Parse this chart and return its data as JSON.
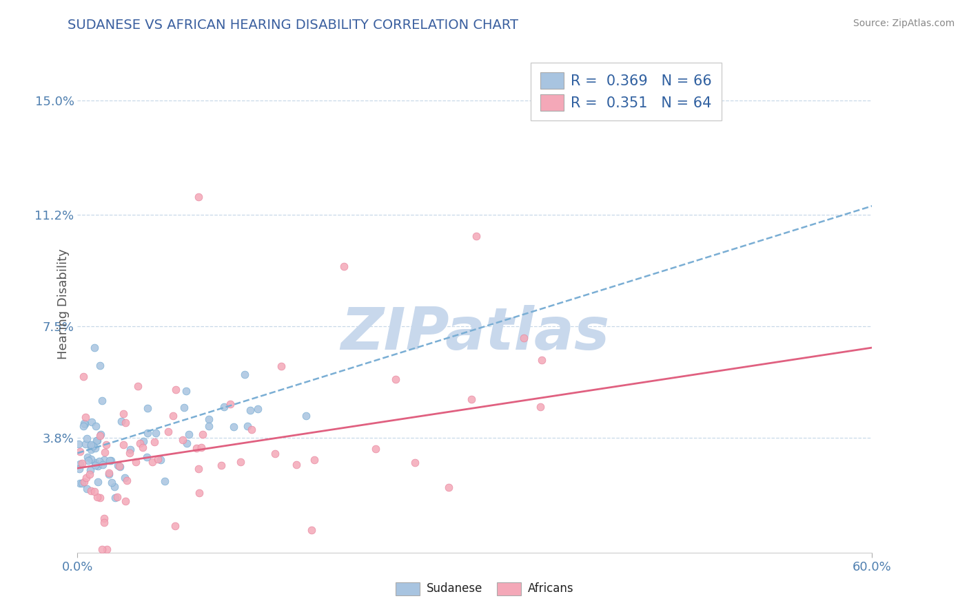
{
  "title": "SUDANESE VS AFRICAN HEARING DISABILITY CORRELATION CHART",
  "source": "Source: ZipAtlas.com",
  "ylabel": "Hearing Disability",
  "xlim": [
    0.0,
    0.6
  ],
  "ylim": [
    0.0,
    0.165
  ],
  "ytick_values": [
    0.038,
    0.075,
    0.112,
    0.15
  ],
  "ytick_labels": [
    "3.8%",
    "7.5%",
    "11.2%",
    "15.0%"
  ],
  "sudanese_R": 0.369,
  "sudanese_N": 66,
  "africans_R": 0.351,
  "africans_N": 64,
  "sudanese_color": "#a8c4e0",
  "sudanese_edge_color": "#7aaed4",
  "africans_color": "#f4a8b8",
  "africans_edge_color": "#e888a0",
  "sudanese_trend_color": "#7aaed4",
  "africans_trend_color": "#e06080",
  "watermark": "ZIPatlas",
  "watermark_color": "#c8d8ec",
  "title_color": "#3a5f9f",
  "axis_label_color": "#555555",
  "tick_color": "#5080b0",
  "legend_text_color": "#3060a0",
  "legend_text_dark": "#222222",
  "background_color": "#ffffff",
  "grid_color": "#c8d8e8",
  "source_color": "#888888"
}
